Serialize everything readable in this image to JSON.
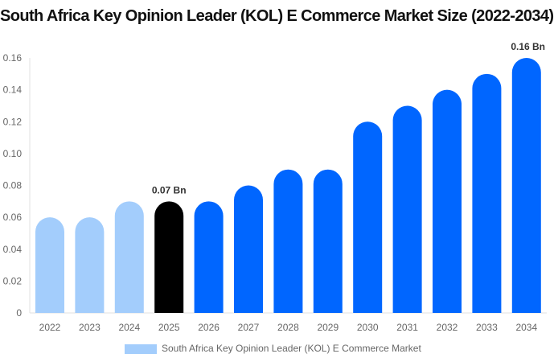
{
  "chart_data": {
    "type": "bar",
    "title": "South Africa Key Opinion Leader (KOL) E Commerce Market Size (2022-2034)",
    "categories": [
      "2022",
      "2023",
      "2024",
      "2025",
      "2026",
      "2027",
      "2028",
      "2029",
      "2030",
      "2031",
      "2032",
      "2033",
      "2034"
    ],
    "series": [
      {
        "name": "South Africa Key Opinion Leader (KOL) E Commerce Market",
        "values": [
          0.06,
          0.06,
          0.07,
          0.07,
          0.07,
          0.08,
          0.09,
          0.09,
          0.12,
          0.13,
          0.14,
          0.15,
          0.16
        ]
      }
    ],
    "bar_colors": [
      "#a3cdfc",
      "#a3cdfc",
      "#a3cdfc",
      "#000000",
      "#0066ff",
      "#0066ff",
      "#0066ff",
      "#0066ff",
      "#0066ff",
      "#0066ff",
      "#0066ff",
      "#0066ff",
      "#0066ff"
    ],
    "legend_color": "#a3cdfc",
    "data_labels": [
      {
        "category": "2025",
        "text": "0.07 Bn"
      },
      {
        "category": "2034",
        "text": "0.16 Bn"
      }
    ],
    "yticks": [
      "0",
      "0.02",
      "0.04",
      "0.06",
      "0.08",
      "0.10",
      "0.12",
      "0.14",
      "0.16"
    ],
    "ylim": [
      0,
      0.16
    ],
    "xlabel": "",
    "ylabel": "",
    "grid": false,
    "legend_position": "bottom"
  }
}
